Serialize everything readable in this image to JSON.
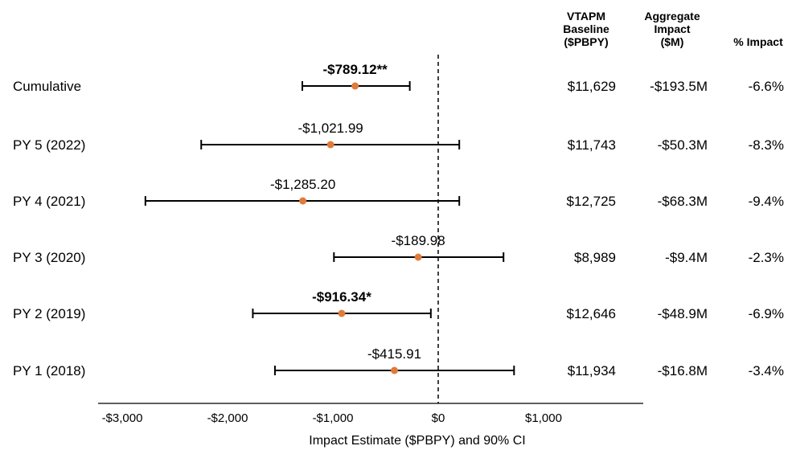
{
  "columns": {
    "baseline": [
      "VTAPM",
      "Baseline",
      "($PBPY)"
    ],
    "aggregate": [
      "Aggregate",
      "Impact",
      "($M)"
    ],
    "pct": "% Impact"
  },
  "chart_data": {
    "type": "forest",
    "xlabel": "Impact Estimate ($PBPY) and 90% CI",
    "xlim": [
      -3400,
      1000
    ],
    "xticks": [
      -3000,
      -2000,
      -1000,
      0,
      1000
    ],
    "xtick_labels": [
      "-$3,000",
      "-$2,000",
      "-$1,000",
      "$0",
      "$1,000"
    ],
    "reference_line": 0,
    "rows": [
      {
        "label": "Cumulative",
        "estimate": -789.12,
        "ci": [
          -1290,
          -270
        ],
        "estimate_label": "-$789.12**",
        "bold": true,
        "baseline": "$11,629",
        "aggregate": "-$193.5M",
        "pct": "-6.6%"
      },
      {
        "label": "PY 5 (2022)",
        "estimate": -1021.99,
        "ci": [
          -2250,
          200
        ],
        "estimate_label": "-$1,021.99",
        "bold": false,
        "baseline": "$11,743",
        "aggregate": "-$50.3M",
        "pct": "-8.3%"
      },
      {
        "label": "PY 4 (2021)",
        "estimate": -1285.2,
        "ci": [
          -2780,
          200
        ],
        "estimate_label": "-$1,285.20",
        "bold": false,
        "baseline": "$12,725",
        "aggregate": "-$68.3M",
        "pct": "-9.4%"
      },
      {
        "label": "PY 3 (2020)",
        "estimate": -189.98,
        "ci": [
          -990,
          620
        ],
        "estimate_label": "-$189.98",
        "bold": false,
        "baseline": "$8,989",
        "aggregate": "-$9.4M",
        "pct": "-2.3%"
      },
      {
        "label": "PY 2 (2019)",
        "estimate": -916.34,
        "ci": [
          -1760,
          -70
        ],
        "estimate_label": "-$916.34*",
        "bold": true,
        "baseline": "$12,646",
        "aggregate": "-$48.9M",
        "pct": "-6.9%"
      },
      {
        "label": "PY 1 (2018)",
        "estimate": -415.91,
        "ci": [
          -1550,
          720
        ],
        "estimate_label": "-$415.91",
        "bold": false,
        "baseline": "$11,934",
        "aggregate": "-$16.8M",
        "pct": "-3.4%"
      }
    ],
    "colors": {
      "point": "#E07B39",
      "line": "#000000",
      "reference": "#000000"
    }
  }
}
